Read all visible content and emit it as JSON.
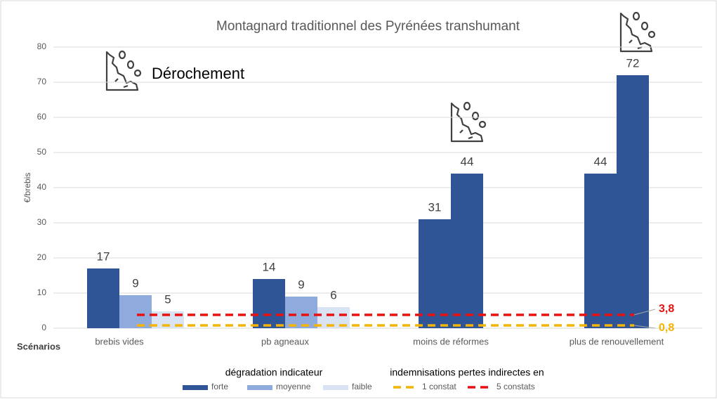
{
  "chart_data": {
    "type": "bar",
    "title": "Montagnard traditionnel des Pyrénées transhumant",
    "y_label": "€/brebis",
    "x_label": "Scénarios",
    "annotation": "Dérochement",
    "categories": [
      "brebis vides",
      "pb agneaux",
      "moins de réformes",
      "plus de renouvellement"
    ],
    "legend_groups": [
      "dégradation indicateur",
      "indemnisations pertes indirectes en"
    ],
    "series": [
      {
        "name": "forte",
        "color": "#2f5597",
        "values": [
          17,
          14,
          31,
          44
        ],
        "value_labels": [
          "17",
          "14",
          "31",
          "44"
        ]
      },
      {
        "name": "moyenne",
        "color": "#8faadc",
        "colors": [
          "#8faadc",
          "#8faadc",
          "#2f5597",
          "#2f5597"
        ],
        "values": [
          9.4,
          9,
          44,
          72
        ],
        "value_labels": [
          "9",
          "9",
          "44",
          "72"
        ]
      },
      {
        "name": "faible",
        "color": "#dae3f3",
        "values": [
          4.8,
          6,
          null,
          null
        ],
        "value_labels": [
          "5",
          "6",
          null,
          null
        ]
      },
      {
        "name": "1 constat",
        "type": "line",
        "color": "#f4b400",
        "values": [
          0.8,
          0.8,
          0.8,
          0.8
        ],
        "end_label": "0,8"
      },
      {
        "name": "5 constats",
        "type": "line",
        "color": "#e81010",
        "values": [
          3.8,
          3.8,
          3.8,
          3.8
        ],
        "end_label": "3,8"
      }
    ],
    "ylim": [
      0,
      80
    ],
    "yticks": [
      0,
      10,
      20,
      30,
      40,
      50,
      60,
      70,
      80
    ],
    "grid": true
  }
}
